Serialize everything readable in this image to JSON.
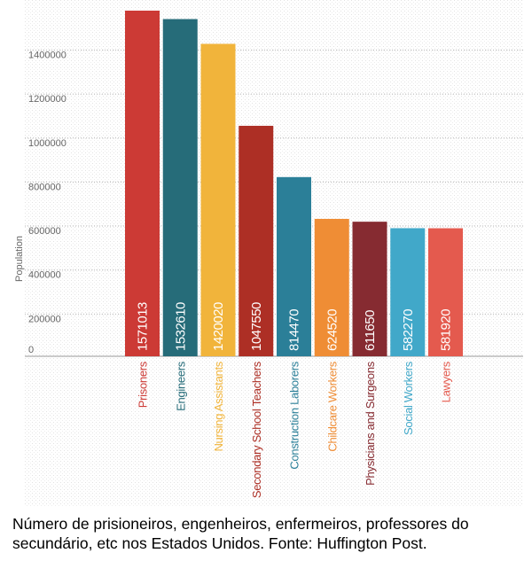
{
  "chart_data": {
    "type": "bar",
    "title": "",
    "xlabel": "",
    "ylabel": "Population",
    "ylim": [
      0,
      1600000
    ],
    "yticks": [
      "0",
      "200000",
      "400000",
      "600000",
      "800000",
      "1000000",
      "1200000",
      "1400000"
    ],
    "tick_values": [
      0,
      200000,
      400000,
      600000,
      800000,
      1000000,
      1200000,
      1400000
    ],
    "categories": [
      "Prisoners",
      "Engineers",
      "Nursing Assistants",
      "Secondary School Teachers",
      "Construction Laborers",
      "Childcare Workers",
      "Physicians and Surgeons",
      "Social Workers",
      "Lawyers"
    ],
    "values": [
      1571013,
      1532610,
      1420020,
      1047550,
      814470,
      624520,
      611650,
      582270,
      581920
    ],
    "value_labels": [
      "1571013",
      "1532610",
      "1420020",
      "1047550",
      "814470",
      "624520",
      "611650",
      "582270",
      "581920"
    ],
    "colors": [
      "#cc3a35",
      "#266c79",
      "#f1b43b",
      "#ad2f25",
      "#2b7f98",
      "#ef8d35",
      "#862b31",
      "#41a8c9",
      "#e45a4e"
    ],
    "grid": true
  },
  "caption": "Número de prisioneiros, engenheiros, enfermeiros, professores do secundário, etc nos Estados Unidos.     Fonte: Huffington Post."
}
